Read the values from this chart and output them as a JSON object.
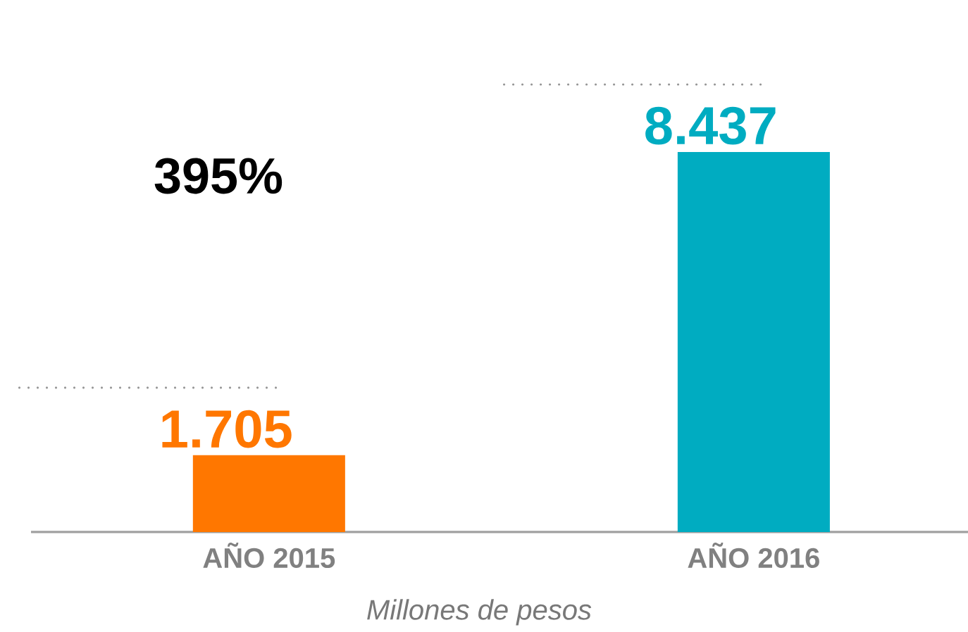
{
  "chart_data": {
    "type": "bar",
    "categories": [
      "AÑO 2015",
      "AÑO 2016"
    ],
    "values": [
      1705,
      8437
    ],
    "colors": [
      "#ff7700",
      "#00acc1"
    ],
    "value_labels": [
      "1.705",
      "8.437"
    ],
    "xlabel": "Millones de pesos",
    "annotations": [
      "395%"
    ]
  }
}
